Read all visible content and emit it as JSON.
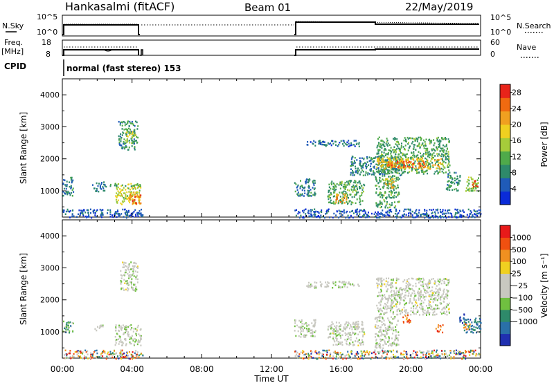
{
  "header": {
    "station": "Hankasalmi (fitACF)",
    "beam": "Beam 01",
    "date": "22/May/2019"
  },
  "top_panels": {
    "nsky_label": "N.Sky",
    "nsearch_label": "N.Search",
    "nsky_ticks": [
      "10^5",
      "10^0"
    ],
    "nsearch_ticks": [
      "10^5",
      "10^0"
    ],
    "freq_label": "Freq.",
    "freq_unit": "[MHz]",
    "freq_ticks": [
      "18",
      "8"
    ],
    "nave_label": "Nave",
    "nave_ticks": [
      "60",
      "0"
    ],
    "cpid_label": "CPID",
    "cpid_text": "normal (fast stereo) 153",
    "data_gap": {
      "start_hour": 4.5,
      "end_hour": 13.25
    }
  },
  "chart_data": [
    {
      "type": "heatmap",
      "title": "",
      "xlabel": "Time UT",
      "ylabel": "Slant Range [km]",
      "xlim": [
        0,
        24
      ],
      "ylim": [
        180,
        4500
      ],
      "x_ticks": [
        "00:00",
        "04:00",
        "08:00",
        "12:00",
        "16:00",
        "20:00",
        "00:00"
      ],
      "x_tick_hours": [
        0,
        4,
        8,
        12,
        16,
        20,
        24
      ],
      "y_ticks": [
        1000,
        2000,
        3000,
        4000
      ],
      "colorbar": {
        "label": "Power [dB]",
        "ticks": [
          "28",
          "24",
          "20",
          "16",
          "12",
          "8",
          "4"
        ],
        "tick_values": [
          28,
          24,
          20,
          16,
          12,
          8,
          4
        ],
        "range": [
          0,
          30
        ],
        "colors": [
          "#0a2bd8",
          "#1f5bb8",
          "#2e8a6a",
          "#4faa4a",
          "#a6cc3a",
          "#f0d020",
          "#f0a020",
          "#f06a10",
          "#e8241a"
        ]
      },
      "regions": [
        {
          "t0": 0.0,
          "t1": 4.6,
          "r0": 180,
          "r1": 450,
          "level": 0.15
        },
        {
          "t0": 0.0,
          "t1": 0.6,
          "r0": 850,
          "r1": 1450,
          "level": 0.25
        },
        {
          "t0": 1.7,
          "t1": 2.4,
          "r0": 1000,
          "r1": 1300,
          "level": 0.2
        },
        {
          "t0": 2.2,
          "t1": 4.6,
          "r0": 1150,
          "r1": 1220,
          "level": 0.3
        },
        {
          "t0": 3.0,
          "t1": 4.5,
          "r0": 600,
          "r1": 1250,
          "level": 0.55
        },
        {
          "t0": 3.8,
          "t1": 4.5,
          "r0": 600,
          "r1": 1000,
          "level": 0.8
        },
        {
          "t0": 3.2,
          "t1": 4.3,
          "r0": 2300,
          "r1": 3200,
          "level": 0.3
        },
        {
          "t0": 3.6,
          "t1": 4.2,
          "r0": 2500,
          "r1": 2900,
          "level": 0.55
        },
        {
          "t0": 13.3,
          "t1": 24.0,
          "r0": 180,
          "r1": 450,
          "level": 0.15
        },
        {
          "t0": 13.3,
          "t1": 14.5,
          "r0": 850,
          "r1": 1400,
          "level": 0.25
        },
        {
          "t0": 15.2,
          "t1": 17.3,
          "r0": 600,
          "r1": 1350,
          "level": 0.35
        },
        {
          "t0": 15.6,
          "t1": 16.3,
          "r0": 650,
          "r1": 950,
          "level": 0.7
        },
        {
          "t0": 17.9,
          "t1": 19.3,
          "r0": 500,
          "r1": 1500,
          "level": 0.35
        },
        {
          "t0": 18.5,
          "t1": 19.0,
          "r0": 1100,
          "r1": 1400,
          "level": 0.65
        },
        {
          "t0": 14.0,
          "t1": 17.0,
          "r0": 2400,
          "r1": 2600,
          "level": 0.2
        },
        {
          "t0": 16.5,
          "t1": 19.5,
          "r0": 1500,
          "r1": 2100,
          "level": 0.25
        },
        {
          "t0": 18.0,
          "t1": 22.2,
          "r0": 1550,
          "r1": 2700,
          "level": 0.35
        },
        {
          "t0": 18.0,
          "t1": 21.8,
          "r0": 1700,
          "r1": 2050,
          "level": 0.65
        },
        {
          "t0": 18.6,
          "t1": 20.8,
          "r0": 1750,
          "r1": 1950,
          "level": 0.85
        },
        {
          "t0": 22.0,
          "t1": 22.8,
          "r0": 1000,
          "r1": 1600,
          "level": 0.3
        },
        {
          "t0": 23.1,
          "t1": 24.0,
          "r0": 1000,
          "r1": 1450,
          "level": 0.45
        },
        {
          "t0": 23.4,
          "t1": 23.8,
          "r0": 1150,
          "r1": 1350,
          "level": 0.9
        }
      ]
    },
    {
      "type": "heatmap",
      "title": "",
      "xlabel": "Time UT",
      "ylabel": "Slant Range [km]",
      "xlim": [
        0,
        24
      ],
      "ylim": [
        180,
        4500
      ],
      "x_ticks": [
        "00:00",
        "04:00",
        "08:00",
        "12:00",
        "16:00",
        "20:00",
        "00:00"
      ],
      "x_tick_hours": [
        0,
        4,
        8,
        12,
        16,
        20,
        24
      ],
      "y_ticks": [
        1000,
        2000,
        3000,
        4000
      ],
      "colorbar": {
        "label": "Velocity [m s⁻¹]",
        "ticks": [
          "1000",
          "500",
          "100",
          "25",
          "−25",
          "−100",
          "−500",
          "−1000"
        ],
        "colors": [
          "#2030b0",
          "#2a70a8",
          "#2e8a6a",
          "#70c040",
          "#c8c8c0",
          "#c8c8c0",
          "#f0d020",
          "#f09020",
          "#f05010",
          "#e81a1a"
        ]
      },
      "regions": [
        {
          "t0": 0.0,
          "t1": 4.6,
          "r0": 180,
          "r1": 450,
          "level": 0.5,
          "kind": "mix"
        },
        {
          "t0": 0.0,
          "t1": 0.6,
          "r0": 1000,
          "r1": 1400,
          "level": 0.3
        },
        {
          "t0": 1.8,
          "t1": 2.3,
          "r0": 1050,
          "r1": 1250,
          "level": 0.45
        },
        {
          "t0": 3.0,
          "t1": 4.5,
          "r0": 600,
          "r1": 1250,
          "level": 0.48
        },
        {
          "t0": 3.3,
          "t1": 4.3,
          "r0": 2300,
          "r1": 3200,
          "level": 0.48
        },
        {
          "t0": 13.3,
          "t1": 24.0,
          "r0": 180,
          "r1": 450,
          "level": 0.5,
          "kind": "mix"
        },
        {
          "t0": 13.3,
          "t1": 14.5,
          "r0": 850,
          "r1": 1400,
          "level": 0.48
        },
        {
          "t0": 15.2,
          "t1": 17.3,
          "r0": 600,
          "r1": 1350,
          "level": 0.48
        },
        {
          "t0": 17.9,
          "t1": 19.3,
          "r0": 500,
          "r1": 1500,
          "level": 0.48
        },
        {
          "t0": 14.0,
          "t1": 17.0,
          "r0": 2400,
          "r1": 2600,
          "level": 0.48
        },
        {
          "t0": 18.0,
          "t1": 22.2,
          "r0": 1550,
          "r1": 2700,
          "level": 0.48
        },
        {
          "t0": 19.5,
          "t1": 20.0,
          "r0": 1300,
          "r1": 1550,
          "level": 0.82
        },
        {
          "t0": 21.4,
          "t1": 21.8,
          "r0": 1000,
          "r1": 1250,
          "level": 0.85
        },
        {
          "t0": 22.7,
          "t1": 23.1,
          "r0": 1300,
          "r1": 1600,
          "level": 0.1
        },
        {
          "t0": 23.0,
          "t1": 24.0,
          "r0": 1000,
          "r1": 1450,
          "level": 0.2
        },
        {
          "t0": 23.0,
          "t1": 23.4,
          "r0": 1100,
          "r1": 1300,
          "level": 0.72
        }
      ]
    }
  ]
}
